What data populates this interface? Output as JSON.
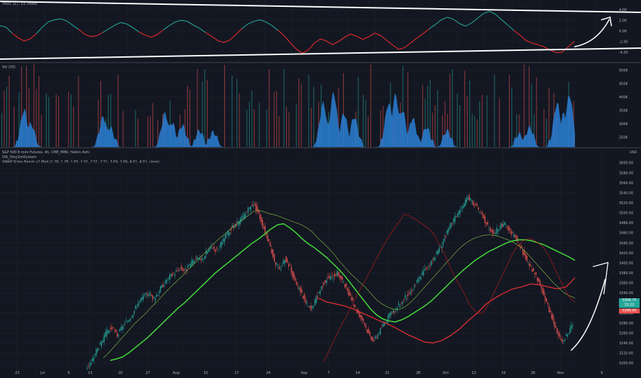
{
  "chart_data": [
    {
      "type": "line",
      "title": "TROC (21, 13, close)",
      "y_axis_ticks": [
        "4.00",
        "2.00",
        "0.00",
        "-2.00",
        "-4.00"
      ],
      "ylim": [
        -4.8,
        4.8
      ],
      "series": [
        {
          "values": [
            1.0,
            0.7,
            -0.4,
            -1.3,
            -1.9,
            -1.5,
            -0.5,
            0.7,
            1.7,
            2.1,
            2.3,
            1.9,
            1.1,
            0.3,
            -0.6,
            -1.1,
            -0.9,
            -0.3,
            0.4,
            1.1,
            1.6,
            1.3,
            0.6,
            -0.2,
            -0.8,
            -1.2,
            -0.7,
            0.2,
            1.0,
            1.7,
            2.0,
            1.8,
            1.1,
            0.5,
            -0.3,
            -1.0,
            -1.8,
            -2.2,
            -1.7,
            -0.7,
            0.4,
            1.3,
            1.8,
            2.1,
            1.7,
            1.0,
            0.1,
            -0.9,
            -2.2,
            -3.4,
            -4.2,
            -3.6,
            -2.3,
            -1.5,
            -1.9,
            -2.6,
            -2.0,
            -1.2,
            -0.6,
            -1.0,
            -1.6,
            -1.1,
            -0.4,
            -0.9,
            -1.8,
            -2.7,
            -3.5,
            -3.1,
            -2.2,
            -1.3,
            -0.5,
            0.4,
            1.2,
            2.1,
            2.6,
            2.2,
            1.4,
            0.9,
            1.5,
            2.4,
            3.3,
            3.7,
            3.1,
            2.1,
            1.1,
            0.1,
            -0.8,
            -1.8,
            -2.3,
            -2.6,
            -3.0,
            -3.6,
            -4.1,
            -4.0,
            -3.0,
            -2.0
          ]
        }
      ],
      "annotations": [
        "trendline-upper",
        "trendline-lower",
        "arrow-up"
      ]
    },
    {
      "type": "bar",
      "title": "Vol (20)",
      "y_axis_ticks": [
        "500K",
        "450K",
        "400K",
        "350K",
        "300K",
        "250K"
      ],
      "note": "area filled blue; background thin colored volume bars"
    },
    {
      "type": "line",
      "title": "S&P 500 E-mini Futures, 4h, CME_MINI, Heikin Ashi",
      "subtitles": [
        "OSI_DingDotSystem",
        "VWAP Stdev Bands v2 Mod (1.28, 1.28, 1.05, 2.01, 2.51, 2.51, 3.09, 3.09, 4.01, 4.01, close)"
      ],
      "y_axis_ticks": [
        "3600.00",
        "3580.00",
        "3560.00",
        "3540.00",
        "3520.00",
        "3500.00",
        "3480.00",
        "3460.00",
        "3440.00",
        "3420.00",
        "3400.00",
        "3380.00",
        "3360.00",
        "3340.00",
        "3320.00",
        "3300.00",
        "3280.00",
        "3260.00",
        "3240.00",
        "3220.00",
        "3200.00"
      ],
      "unit": "USD",
      "ylim": [
        3192,
        3612
      ],
      "x_ticks": [
        "23",
        "Jul",
        "6",
        "13",
        "20",
        "27",
        "Aug",
        "10",
        "17",
        "24",
        "Sep",
        "7",
        "14",
        "21",
        "28",
        "Oct",
        "12",
        "19",
        "26",
        "Nov",
        "9"
      ],
      "series": [
        {
          "name": "close",
          "values": [
            3188,
            3200,
            3225,
            3240,
            3262,
            3270,
            3255,
            3272,
            3285,
            3300,
            3320,
            3332,
            3340,
            3328,
            3345,
            3360,
            3372,
            3380,
            3390,
            3384,
            3398,
            3410,
            3404,
            3420,
            3432,
            3426,
            3440,
            3458,
            3470,
            3478,
            3492,
            3505,
            3520,
            3498,
            3470,
            3440,
            3405,
            3385,
            3410,
            3392,
            3360,
            3345,
            3320,
            3305,
            3330,
            3352,
            3368,
            3372,
            3380,
            3365,
            3342,
            3320,
            3300,
            3285,
            3258,
            3245,
            3262,
            3280,
            3295,
            3305,
            3318,
            3330,
            3342,
            3358,
            3375,
            3390,
            3402,
            3418,
            3438,
            3460,
            3482,
            3500,
            3512,
            3530,
            3520,
            3505,
            3488,
            3470,
            3460,
            3472,
            3478,
            3462,
            3450,
            3430,
            3410,
            3390,
            3372,
            3348,
            3320,
            3292,
            3260,
            3242,
            3258,
            3275
          ]
        },
        {
          "name": "vwap-upper",
          "values": [
            3330,
            3322,
            3318,
            3314,
            3308,
            3300,
            3292,
            3284,
            3277,
            3268,
            3258,
            3250,
            3242,
            3240,
            3245,
            3255,
            3268,
            3285,
            3300,
            3318,
            3330,
            3340,
            3348,
            3352,
            3358,
            3356,
            3352,
            3348,
            3352,
            3370
          ]
        },
        {
          "name": "vwap-mid",
          "values": [
            3210,
            3220,
            3232,
            3244,
            3256,
            3268,
            3280,
            3290,
            3300,
            3312,
            3322,
            3334,
            3345,
            3356,
            3366,
            3376,
            3388,
            3398,
            3410,
            3420,
            3432,
            3442,
            3452,
            3460,
            3470,
            3478,
            3486,
            3494,
            3503,
            3505,
            3502,
            3498,
            3496,
            3492,
            3488,
            3484,
            3480,
            3476,
            3470,
            3462,
            3450,
            3440,
            3430,
            3418,
            3404,
            3392,
            3380,
            3370,
            3360,
            3350,
            3338,
            3326,
            3318,
            3312,
            3308,
            3306,
            3310,
            3318,
            3328,
            3340,
            3352,
            3364,
            3376,
            3388,
            3400,
            3412,
            3424,
            3434,
            3442,
            3448,
            3452,
            3455,
            3456,
            3455,
            3452,
            3448,
            3444,
            3438,
            3430,
            3420,
            3408,
            3396,
            3384,
            3372,
            3360,
            3350,
            3340,
            3334,
            3330
          ]
        },
        {
          "name": "vwap-lower",
          "values": [
            3205,
            3208,
            3212,
            3220,
            3230,
            3240,
            3250,
            3262,
            3274,
            3286,
            3298,
            3310,
            3320,
            3332,
            3344,
            3356,
            3368,
            3380,
            3390,
            3400,
            3410,
            3420,
            3430,
            3440,
            3448,
            3458,
            3468,
            3476,
            3478,
            3470,
            3460,
            3448,
            3438,
            3430,
            3420,
            3410,
            3398,
            3386,
            3372,
            3356,
            3340,
            3324,
            3308,
            3296,
            3288,
            3284,
            3282,
            3286,
            3292,
            3300,
            3308,
            3316,
            3326,
            3338,
            3350,
            3362,
            3374,
            3386,
            3396,
            3406,
            3414,
            3422,
            3428,
            3434,
            3440,
            3444,
            3446,
            3446,
            3444,
            3440,
            3436,
            3430,
            3424,
            3418,
            3412,
            3405
          ]
        }
      ],
      "price_badges": [
        {
          "label": "3306.75",
          "color": "#26a69a"
        },
        {
          "label": "15:22",
          "color": "#26a69a"
        },
        {
          "label": "3298.00",
          "color": "#ef5350"
        }
      ]
    }
  ]
}
